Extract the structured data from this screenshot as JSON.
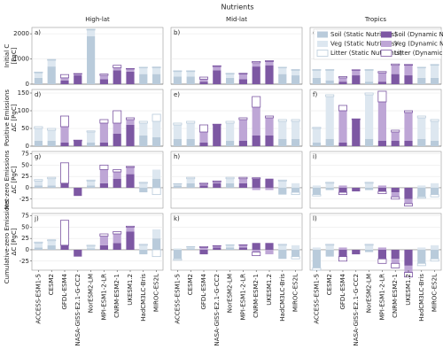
{
  "chart_data": {
    "type": "bar",
    "title": "Nutrients",
    "columns": [
      "High-lat",
      "Mid-lat",
      "Tropics"
    ],
    "categories": [
      "ACCESS-ESM1-5",
      "CESM2",
      "GFDL-ESM4",
      "NASA-GISS-E2.1-G-CC2",
      "NorESM2-LM",
      "MPI-ESM1-2-LR",
      "CNRM-ESM2-1",
      "UKESM1.2",
      "HadCM3LC-Bris",
      "MIROC-ES2L"
    ],
    "series": [
      {
        "name": "Soil (Static Nutrients)",
        "color": "#b9cbdb"
      },
      {
        "name": "Veg (Static Nutrients)",
        "color": "#dde7f0"
      },
      {
        "name": "Litter (Static Nutrients)",
        "color": "#ffffff",
        "edge": "#b9cbdb"
      },
      {
        "name": "Soil (Dynamic Nutrients)",
        "color": "#7d58a3"
      },
      {
        "name": "Veg (Dynamic Nutrients)",
        "color": "#bea6d6"
      },
      {
        "name": "Litter (Dynamic Nutrients)",
        "color": "#ffffff",
        "edge": "#7d58a3"
      }
    ],
    "rows": [
      {
        "ylabel": [
          "Initial C",
          "[PgC]"
        ],
        "ylim": [
          0,
          2250
        ],
        "yticks": [
          0,
          1000,
          2000
        ]
      },
      {
        "ylabel": [
          "Positive Emissions",
          "ΔC [PgC]"
        ],
        "ylim": [
          0,
          160
        ],
        "yticks": [
          0,
          50,
          100,
          150
        ]
      },
      {
        "ylabel": [
          "Net-zero Emissions",
          "ΔC [PgC]"
        ],
        "ylim": [
          -45,
          80
        ],
        "yticks": [
          -25,
          0,
          25,
          50,
          75
        ]
      },
      {
        "ylabel": [
          "Cumulative-zero Emissions",
          "ΔC [PgC]"
        ],
        "ylim": [
          -45,
          80
        ],
        "yticks": [
          -25,
          0,
          25,
          50,
          75
        ]
      }
    ],
    "panels": [
      {
        "label": "a)",
        "values": [
          [
            250,
            700,
            null,
            null,
            1900,
            null,
            null,
            null,
            400,
            400
          ],
          [
            200,
            250,
            null,
            null,
            250,
            null,
            null,
            null,
            250,
            250
          ],
          [
            30,
            30,
            null,
            null,
            30,
            null,
            null,
            null,
            20,
            30
          ],
          [
            null,
            null,
            150,
            350,
            null,
            200,
            550,
            500,
            null,
            null
          ],
          [
            null,
            null,
            100,
            50,
            null,
            150,
            100,
            100,
            null,
            null
          ],
          [
            null,
            null,
            130,
            20,
            null,
            50,
            100,
            20,
            null,
            null
          ]
        ]
      },
      {
        "label": "b)",
        "values": [
          [
            300,
            300,
            null,
            null,
            250,
            null,
            null,
            null,
            400,
            350
          ],
          [
            200,
            200,
            null,
            null,
            150,
            null,
            null,
            null,
            250,
            200
          ],
          [
            30,
            30,
            null,
            null,
            30,
            null,
            null,
            null,
            20,
            30
          ],
          [
            null,
            null,
            100,
            550,
            null,
            200,
            700,
            750,
            null,
            null
          ],
          [
            null,
            null,
            100,
            150,
            null,
            200,
            150,
            150,
            null,
            null
          ],
          [
            null,
            null,
            80,
            30,
            null,
            30,
            50,
            30,
            null,
            null
          ]
        ]
      },
      {
        "label": "c)",
        "values": [
          [
            250,
            150,
            null,
            null,
            100,
            null,
            null,
            null,
            250,
            250
          ],
          [
            300,
            400,
            null,
            null,
            450,
            null,
            null,
            null,
            400,
            500
          ],
          [
            30,
            30,
            null,
            null,
            30,
            null,
            null,
            null,
            20,
            30
          ],
          [
            null,
            null,
            100,
            350,
            null,
            100,
            400,
            350,
            null,
            null
          ],
          [
            null,
            null,
            150,
            200,
            null,
            350,
            350,
            400,
            null,
            null
          ],
          [
            null,
            null,
            50,
            20,
            null,
            50,
            50,
            30,
            null,
            null
          ]
        ]
      },
      {
        "label": "d)",
        "values": [
          [
            15,
            15,
            null,
            null,
            10,
            null,
            null,
            null,
            30,
            25
          ],
          [
            35,
            30,
            null,
            null,
            30,
            null,
            null,
            null,
            35,
            45
          ],
          [
            5,
            5,
            null,
            null,
            3,
            null,
            null,
            null,
            5,
            20
          ],
          [
            null,
            null,
            10,
            15,
            null,
            10,
            35,
            60,
            null,
            null
          ],
          [
            null,
            null,
            45,
            0,
            null,
            55,
            30,
            15,
            null,
            null
          ],
          [
            null,
            null,
            30,
            2,
            null,
            10,
            35,
            5,
            null,
            null
          ]
        ]
      },
      {
        "label": "e)",
        "values": [
          [
            20,
            20,
            null,
            null,
            15,
            null,
            null,
            null,
            20,
            20
          ],
          [
            40,
            45,
            null,
            null,
            50,
            null,
            null,
            null,
            50,
            50
          ],
          [
            5,
            5,
            null,
            null,
            5,
            null,
            null,
            null,
            5,
            5
          ],
          [
            null,
            null,
            10,
            60,
            null,
            15,
            30,
            30,
            null,
            null
          ],
          [
            null,
            null,
            30,
            0,
            null,
            60,
            80,
            50,
            null,
            null
          ],
          [
            null,
            null,
            20,
            2,
            null,
            5,
            30,
            5,
            null,
            null
          ]
        ]
      },
      {
        "label": "f)",
        "values": [
          [
            10,
            20,
            null,
            null,
            20,
            null,
            null,
            null,
            20,
            15
          ],
          [
            40,
            120,
            null,
            null,
            125,
            null,
            null,
            null,
            60,
            55
          ],
          [
            3,
            5,
            null,
            null,
            5,
            null,
            null,
            null,
            5,
            5
          ],
          [
            null,
            null,
            10,
            75,
            null,
            15,
            15,
            15,
            null,
            null
          ],
          [
            null,
            null,
            90,
            0,
            null,
            110,
            25,
            80,
            null,
            null
          ],
          [
            null,
            null,
            15,
            2,
            null,
            30,
            5,
            5,
            null,
            null
          ]
        ]
      },
      {
        "label": "g)",
        "values": [
          [
            5,
            5,
            null,
            null,
            5,
            null,
            null,
            null,
            -10,
            20
          ],
          [
            10,
            15,
            null,
            null,
            10,
            null,
            null,
            null,
            10,
            20
          ],
          [
            3,
            3,
            null,
            null,
            2,
            null,
            null,
            null,
            2,
            -15
          ],
          [
            null,
            null,
            10,
            -18,
            null,
            10,
            20,
            30,
            null,
            null
          ],
          [
            null,
            null,
            0,
            0,
            null,
            30,
            15,
            15,
            null,
            null
          ],
          [
            null,
            null,
            45,
            0,
            null,
            10,
            5,
            2,
            null,
            null
          ]
        ]
      },
      {
        "label": "h)",
        "values": [
          [
            5,
            10,
            null,
            null,
            10,
            null,
            null,
            null,
            -15,
            -10
          ],
          [
            3,
            10,
            null,
            null,
            10,
            null,
            null,
            null,
            15,
            10
          ],
          [
            1,
            3,
            null,
            null,
            3,
            null,
            null,
            null,
            2,
            -5
          ],
          [
            null,
            null,
            5,
            10,
            null,
            10,
            20,
            20,
            null,
            null
          ],
          [
            null,
            null,
            3,
            3,
            null,
            10,
            -5,
            -5,
            null,
            null
          ],
          [
            null,
            null,
            2,
            2,
            null,
            3,
            2,
            0,
            null,
            null
          ]
        ]
      },
      {
        "label": "i)",
        "values": [
          [
            -15,
            -5,
            null,
            null,
            -5,
            null,
            null,
            null,
            -20,
            -15
          ],
          [
            5,
            10,
            null,
            null,
            10,
            null,
            null,
            null,
            5,
            10
          ],
          [
            -3,
            2,
            null,
            null,
            2,
            null,
            null,
            null,
            -3,
            -5
          ],
          [
            null,
            null,
            -10,
            -8,
            null,
            -8,
            -10,
            -25,
            null,
            null
          ],
          [
            null,
            null,
            5,
            0,
            null,
            5,
            -10,
            -10,
            null,
            null
          ],
          [
            null,
            null,
            -5,
            0,
            null,
            -5,
            -5,
            -5,
            null,
            null
          ]
        ]
      },
      {
        "label": "j)",
        "values": [
          [
            5,
            10,
            null,
            null,
            3,
            null,
            null,
            null,
            -10,
            25
          ],
          [
            10,
            10,
            null,
            null,
            5,
            null,
            null,
            null,
            10,
            20
          ],
          [
            2,
            2,
            null,
            null,
            2,
            null,
            null,
            null,
            2,
            -15
          ],
          [
            null,
            null,
            10,
            -15,
            null,
            10,
            15,
            40,
            null,
            null
          ],
          [
            null,
            null,
            0,
            0,
            null,
            20,
            20,
            10,
            null,
            null
          ],
          [
            null,
            null,
            55,
            0,
            null,
            5,
            5,
            2,
            null,
            null
          ]
        ]
      },
      {
        "label": "k)",
        "values": [
          [
            -20,
            3,
            null,
            null,
            5,
            null,
            null,
            null,
            -20,
            -15
          ],
          [
            3,
            3,
            null,
            null,
            5,
            null,
            null,
            null,
            10,
            10
          ],
          [
            -3,
            1,
            null,
            null,
            1,
            null,
            null,
            null,
            2,
            -5
          ],
          [
            null,
            null,
            -10,
            5,
            null,
            5,
            15,
            15,
            null,
            null
          ],
          [
            null,
            null,
            5,
            3,
            null,
            5,
            -5,
            -10,
            null,
            null
          ],
          [
            null,
            null,
            2,
            1,
            null,
            1,
            -8,
            0,
            null,
            null
          ]
        ]
      },
      {
        "label": "l)",
        "values": [
          [
            -40,
            -15,
            null,
            null,
            -5,
            null,
            null,
            null,
            -30,
            -20
          ],
          [
            5,
            10,
            null,
            null,
            10,
            null,
            null,
            null,
            5,
            10
          ],
          [
            -5,
            2,
            null,
            null,
            2,
            null,
            null,
            null,
            -5,
            -5
          ],
          [
            null,
            null,
            -15,
            -10,
            null,
            -20,
            -20,
            -35,
            null,
            null
          ],
          [
            null,
            null,
            5,
            0,
            null,
            5,
            -10,
            -15,
            null,
            null
          ],
          [
            null,
            null,
            -10,
            0,
            null,
            -10,
            -10,
            -10,
            null,
            null
          ]
        ]
      }
    ]
  }
}
